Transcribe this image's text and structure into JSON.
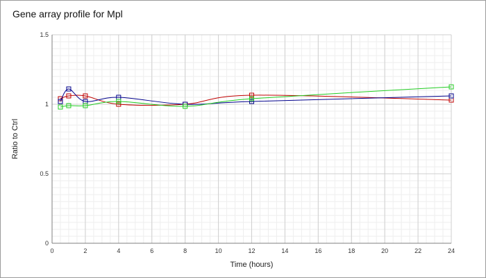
{
  "chart_data": {
    "type": "line",
    "title": "Gene array profile for Mpl",
    "xlabel": "Time (hours)",
    "ylabel": "Ratio to Ctrl",
    "xlim": [
      0,
      24
    ],
    "ylim": [
      0,
      1.5
    ],
    "xticks": [
      "0",
      "2",
      "4",
      "6",
      "8",
      "10",
      "12",
      "14",
      "16",
      "18",
      "20",
      "22",
      "24"
    ],
    "yticks": [
      "0",
      "0.5",
      "1",
      "1.5"
    ],
    "grid": true,
    "marker": "square",
    "series": [
      {
        "color": "#c00000",
        "points": [
          [
            0.5,
            1.04
          ],
          [
            1,
            1.06
          ],
          [
            2,
            1.06
          ],
          [
            4,
            1.0
          ],
          [
            8,
            1.0
          ],
          [
            12,
            1.065
          ],
          [
            24,
            1.03
          ]
        ]
      },
      {
        "color": "#00008b",
        "points": [
          [
            0.5,
            1.02
          ],
          [
            1,
            1.11
          ],
          [
            2,
            1.02
          ],
          [
            4,
            1.05
          ],
          [
            8,
            1.0
          ],
          [
            12,
            1.02
          ],
          [
            24,
            1.06
          ]
        ]
      },
      {
        "color": "#22cc22",
        "points": [
          [
            0.5,
            0.98
          ],
          [
            1,
            0.99
          ],
          [
            2,
            0.99
          ],
          [
            4,
            1.02
          ],
          [
            8,
            0.985
          ],
          [
            12,
            1.04
          ],
          [
            24,
            1.125
          ]
        ]
      }
    ]
  }
}
